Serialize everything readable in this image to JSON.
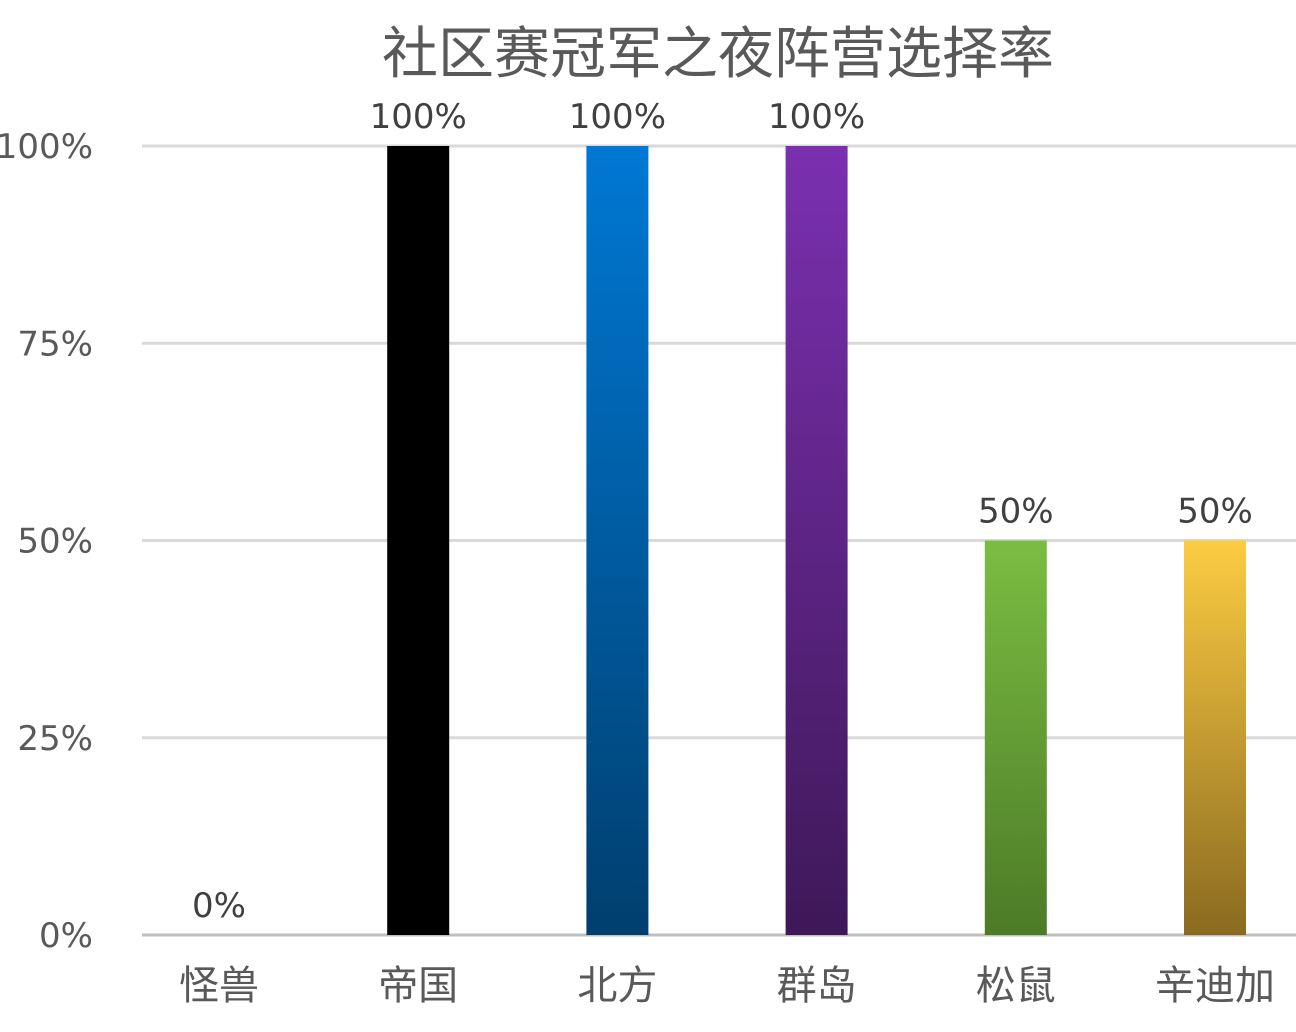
{
  "chart_data": {
    "type": "bar",
    "title": "社区赛冠军之夜阵营选择率",
    "categories": [
      "怪兽",
      "帝国",
      "北方",
      "群岛",
      "松鼠",
      "辛迪加"
    ],
    "values": [
      0,
      100,
      100,
      100,
      50,
      50
    ],
    "data_labels": [
      "0%",
      "100%",
      "100%",
      "100%",
      "50%",
      "50%"
    ],
    "yticks": [
      0,
      25,
      50,
      75,
      100
    ],
    "ytick_labels": [
      "0%",
      "25%",
      "50%",
      "75%",
      "100%"
    ],
    "ylim": [
      0,
      100
    ],
    "grid": true,
    "legend": "none",
    "bar_gradients": [
      [
        "#000000",
        "#000000"
      ],
      [
        "#0078d4",
        "#003f6e"
      ],
      [
        "#7b30b0",
        "#3e1858"
      ],
      [
        "#7bbd42",
        "#4c7b27"
      ],
      [
        "#fccc42",
        "#8a6a20"
      ],
      [
        "#fccc42",
        "#8a6a20"
      ]
    ],
    "series_colors": [
      "#ffffff",
      "#000000",
      "#0078d4",
      "#7b30b0",
      "#7bbd42",
      "#fccc42"
    ]
  }
}
